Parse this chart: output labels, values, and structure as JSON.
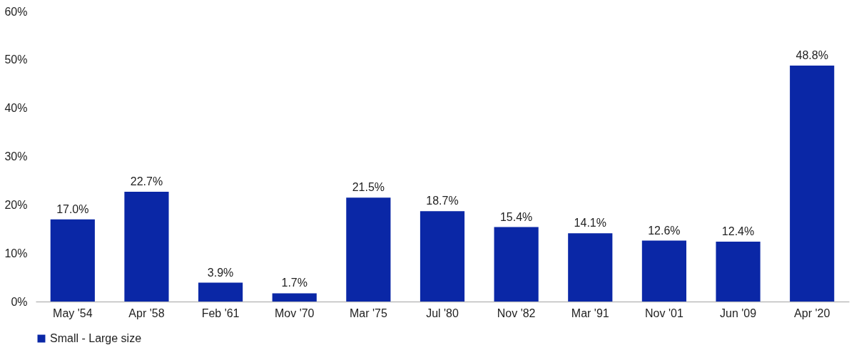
{
  "chart_data": {
    "type": "bar",
    "categories": [
      "May '54",
      "Apr '58",
      "Feb '61",
      "Mov '70",
      "Mar '75",
      "Jul '80",
      "Nov '82",
      "Mar '91",
      "Nov '01",
      "Jun '09",
      "Apr '20"
    ],
    "series": [
      {
        "name": "Small - Large size",
        "color": "#0a27a6",
        "values": [
          17.0,
          22.7,
          3.9,
          1.7,
          21.5,
          18.7,
          15.4,
          14.1,
          12.6,
          12.4,
          48.8
        ],
        "value_labels": [
          "17.0%",
          "22.7%",
          "3.9%",
          "1.7%",
          "21.5%",
          "18.7%",
          "15.4%",
          "14.1%",
          "12.6%",
          "12.4%",
          "48.8%"
        ]
      }
    ],
    "ylim": [
      0,
      60
    ],
    "yticks": [
      {
        "value": 0,
        "label": "0%"
      },
      {
        "value": 10,
        "label": "10%"
      },
      {
        "value": 20,
        "label": "20%"
      },
      {
        "value": 30,
        "label": "30%"
      },
      {
        "value": 40,
        "label": "40%"
      },
      {
        "value": 50,
        "label": "50%"
      },
      {
        "value": 60,
        "label": "60%"
      }
    ],
    "grid": false,
    "legend": "bottom"
  }
}
